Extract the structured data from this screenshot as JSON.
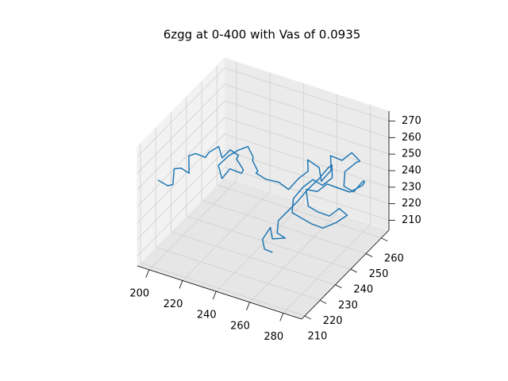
{
  "chart_data": {
    "type": "line3d",
    "title": "6zgg at 0-400 with Vas of 0.0935",
    "color": "#1f77b4",
    "grid": true,
    "x": [
      198,
      202,
      206,
      204,
      209,
      212,
      210,
      215,
      219,
      222,
      226,
      229,
      232,
      236,
      233,
      238,
      235,
      230,
      227,
      224,
      228,
      232,
      237,
      241,
      239,
      243,
      240,
      245,
      250,
      254,
      258,
      262,
      259,
      264,
      268,
      272,
      269,
      274,
      278,
      281,
      277,
      273,
      276,
      280,
      284,
      282,
      279,
      274,
      270,
      266,
      262,
      259,
      263,
      267,
      271,
      275,
      278,
      274,
      269,
      265,
      261,
      257,
      255,
      258,
      262,
      266,
      270,
      267,
      263,
      260,
      256,
      253,
      250,
      247,
      249,
      252,
      248,
      245,
      243,
      246,
      249
    ],
    "y": [
      216,
      218,
      217,
      220,
      219,
      221,
      223,
      222,
      224,
      223,
      225,
      224,
      226,
      227,
      229,
      228,
      230,
      228,
      226,
      227,
      229,
      231,
      232,
      231,
      233,
      232,
      234,
      235,
      238,
      240,
      242,
      244,
      247,
      249,
      246,
      248,
      251,
      253,
      255,
      257,
      259,
      256,
      252,
      254,
      256,
      259,
      261,
      258,
      255,
      252,
      250,
      246,
      243,
      245,
      248,
      250,
      252,
      249,
      246,
      243,
      241,
      239,
      242,
      245,
      247,
      249,
      251,
      254,
      256,
      253,
      250,
      247,
      244,
      241,
      238,
      240,
      236,
      238,
      235,
      233,
      235
    ],
    "z": [
      250,
      246,
      249,
      255,
      258,
      254,
      262,
      266,
      263,
      268,
      271,
      266,
      270,
      267,
      262,
      258,
      253,
      256,
      251,
      257,
      262,
      265,
      268,
      264,
      259,
      255,
      251,
      248,
      245,
      240,
      246,
      250,
      253,
      248,
      244,
      250,
      255,
      252,
      256,
      250,
      246,
      242,
      238,
      234,
      240,
      236,
      231,
      228,
      232,
      236,
      232,
      236,
      230,
      226,
      222,
      226,
      221,
      218,
      216,
      220,
      224,
      228,
      233,
      238,
      242,
      238,
      242,
      246,
      241,
      236,
      231,
      226,
      222,
      218,
      214,
      210,
      212,
      216,
      211,
      208,
      205
    ],
    "xlim": [
      193,
      291
    ],
    "ylim": [
      208,
      265
    ],
    "zlim": [
      204,
      276
    ],
    "xticks": [
      200,
      220,
      240,
      260,
      280
    ],
    "yticks": [
      210,
      220,
      230,
      240,
      250,
      260
    ],
    "zticks": [
      210,
      220,
      230,
      240,
      250,
      260,
      270
    ]
  }
}
